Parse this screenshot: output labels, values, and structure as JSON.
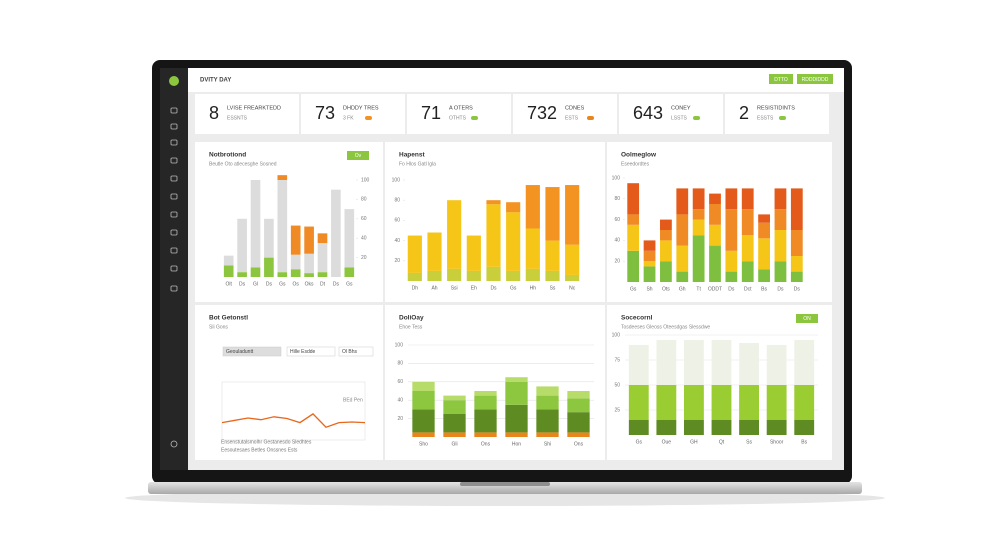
{
  "header": {
    "title": "DVITY DAY",
    "buttons": [
      "DTTO",
      "RDDDIDDD"
    ]
  },
  "kpis": [
    {
      "value": 8,
      "label": "LVISE FREARKTEDD",
      "sub": "ESSNTS"
    },
    {
      "value": 73,
      "label": "DHDDY TRES",
      "sub": "3 FK"
    },
    {
      "value": 71,
      "label": "A OTERS",
      "sub": "OTHTS"
    },
    {
      "value": 732,
      "label": "CDNES",
      "sub": "ESTS"
    },
    {
      "value": 643,
      "label": "CONEY",
      "sub": "LSSTS"
    },
    {
      "value": 2,
      "label": "RESISTIDINTS",
      "sub": "ESSTS"
    }
  ],
  "panels": [
    {
      "type": "stacked-bar",
      "title": "Notbrotiond",
      "subtitle": "Beutle Oto atlecesghe Sosned",
      "button": "Ov",
      "y_axis_side": "right",
      "categories": [
        "Olt",
        "Ds",
        "Gl",
        "Ds",
        "Gs",
        "Os",
        "Oks",
        "Dt",
        "Ds",
        "Gs"
      ],
      "series": [
        {
          "color": "#8cc63f",
          "values": [
            12,
            5,
            10,
            20,
            5,
            8,
            4,
            5,
            0,
            10
          ]
        },
        {
          "color": "#dcdcdc",
          "values": [
            10,
            55,
            90,
            40,
            95,
            15,
            20,
            30,
            90,
            60
          ]
        },
        {
          "color": "#f08a24",
          "values": [
            0,
            0,
            0,
            0,
            5,
            30,
            28,
            10,
            0,
            0
          ]
        }
      ],
      "ylim": [
        0,
        100
      ],
      "yticks": [
        20,
        40,
        60,
        80,
        100
      ]
    },
    {
      "type": "stacked-bar",
      "title": "Hapenst",
      "subtitle": "Fo Hlos Gatl lgla",
      "y_axis_side": "left",
      "categories": [
        "Dh",
        "Ah",
        "Ssi",
        "Eh",
        "Ds",
        "Gs",
        "Hh",
        "Ss",
        "Nc"
      ],
      "series": [
        {
          "color": "#c9cf3a",
          "values": [
            8,
            10,
            12,
            10,
            14,
            10,
            12,
            10,
            6
          ]
        },
        {
          "color": "#f5c518",
          "values": [
            37,
            38,
            68,
            35,
            62,
            58,
            40,
            30,
            30
          ]
        },
        {
          "color": "#f29322",
          "values": [
            0,
            0,
            0,
            0,
            4,
            10,
            43,
            53,
            59
          ]
        }
      ],
      "ylim": [
        0,
        100
      ],
      "yticks": [
        20,
        40,
        60,
        80,
        100
      ]
    },
    {
      "type": "stacked-bar",
      "title": "Oolmeglow",
      "subtitle": "Eseedordtes",
      "y_axis_side": "left",
      "categories": [
        "Gs",
        "Sh",
        "Ots",
        "Gh",
        "Tt",
        "ODDT",
        "Ds",
        "Dct",
        "Bs",
        "Ds",
        "Ds"
      ],
      "series": [
        {
          "color": "#7fbf3f",
          "values": [
            30,
            15,
            20,
            10,
            45,
            35,
            10,
            20,
            12,
            20,
            10
          ]
        },
        {
          "color": "#f5c518",
          "values": [
            25,
            5,
            20,
            25,
            15,
            20,
            20,
            25,
            30,
            30,
            15
          ]
        },
        {
          "color": "#f08a24",
          "values": [
            10,
            10,
            10,
            30,
            10,
            20,
            40,
            25,
            15,
            20,
            25
          ]
        },
        {
          "color": "#e35a1a",
          "values": [
            30,
            10,
            10,
            25,
            20,
            10,
            20,
            20,
            8,
            20,
            40
          ]
        }
      ],
      "ylim": [
        0,
        100
      ],
      "yticks": [
        20,
        40,
        60,
        80,
        100
      ]
    },
    {
      "type": "line",
      "title": "Bot Getonstl",
      "subtitle": "Sli Gons",
      "pills": [
        "Geouladuntt",
        "Hille Esdde",
        "Ol Bhs"
      ],
      "line_label": "BEd Pen",
      "footer": [
        "Ensenstutalsmolhr Gestanesdo Sledhtes",
        "Eesoutesaes Betles Onssnes Ests"
      ],
      "x": [
        1,
        2,
        3,
        4,
        5,
        6,
        7,
        8,
        9,
        10,
        11,
        12
      ],
      "xlim": [
        1,
        12
      ],
      "series": [
        {
          "color": "#e8671c",
          "values": [
            30,
            34,
            38,
            35,
            40,
            37,
            30,
            45,
            22,
            30,
            31,
            30
          ]
        }
      ],
      "ylim": [
        0,
        100
      ]
    },
    {
      "type": "stacked-bar",
      "title": "DoliOay",
      "subtitle": "Ehoe Tess",
      "y_axis_side": "left",
      "grid": true,
      "categories": [
        "Sho",
        "Gli",
        "Ons",
        "Hon",
        "Shi",
        "Ons"
      ],
      "series": [
        {
          "color": "#e8861c",
          "values": [
            5,
            5,
            5,
            5,
            5,
            5
          ]
        },
        {
          "color": "#5e8c22",
          "values": [
            25,
            20,
            25,
            30,
            25,
            22
          ]
        },
        {
          "color": "#8dc63f",
          "values": [
            20,
            15,
            15,
            25,
            15,
            15
          ]
        },
        {
          "color": "#b8dc6a",
          "values": [
            10,
            5,
            5,
            5,
            10,
            8
          ]
        }
      ],
      "ylim": [
        0,
        100
      ],
      "yticks": [
        20,
        40,
        60,
        80,
        100
      ]
    },
    {
      "type": "stacked-bar",
      "title": "Socecornl",
      "subtitle": "Tosdeeses Gleoss Oteesdgas Slessdwe",
      "button": "ON",
      "y_axis_side": "left",
      "grid": true,
      "categories": [
        "Gs",
        "Oue",
        "GH",
        "Qt",
        "Ss",
        "Shoor",
        "Bs"
      ],
      "series": [
        {
          "color": "#5e8c22",
          "values": [
            15,
            15,
            15,
            15,
            15,
            15,
            15
          ]
        },
        {
          "color": "#9acd32",
          "values": [
            35,
            35,
            35,
            35,
            35,
            35,
            35
          ]
        },
        {
          "color": "#eef2e6",
          "values": [
            40,
            45,
            45,
            45,
            42,
            40,
            45
          ]
        }
      ],
      "ylim": [
        0,
        100
      ],
      "yticks": [
        25,
        50,
        75,
        100
      ]
    }
  ]
}
